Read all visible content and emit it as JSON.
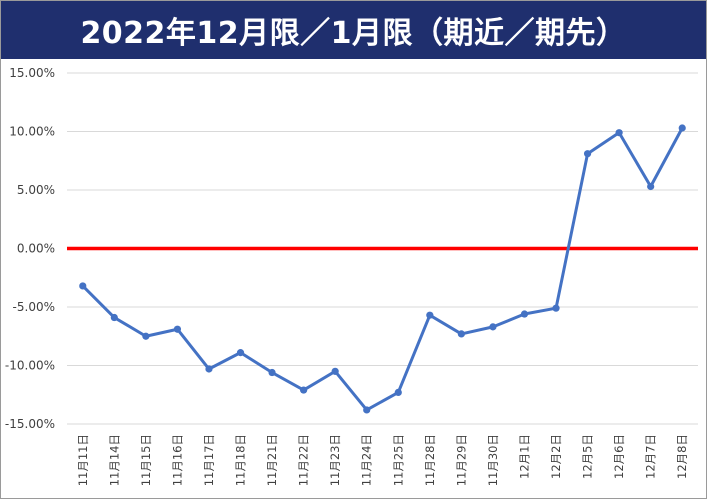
{
  "title": "2022年12月限／1月限（期近／期先）",
  "colors": {
    "title_bg": "#1f2f6e",
    "series": "#4472c4",
    "zero_line": "#ff0000",
    "grid": "#d9d9d9"
  },
  "chart_data": {
    "type": "line",
    "title": "2022年12月限／1月限（期近／期先）",
    "xlabel": "",
    "ylabel": "",
    "ylim": [
      -15,
      15
    ],
    "y_ticks": [
      15,
      10,
      5,
      0,
      -5,
      -10,
      -15
    ],
    "y_tick_labels": [
      "15.00%",
      "10.00%",
      "5.00%",
      "0.00%",
      "-5.00%",
      "-10.00%",
      "-15.00%"
    ],
    "grid": true,
    "legend": "none",
    "reference_line": 0,
    "categories": [
      "11月11日",
      "11月14日",
      "11月15日",
      "11月16日",
      "11月17日",
      "11月18日",
      "11月21日",
      "11月22日",
      "11月23日",
      "11月24日",
      "11月25日",
      "11月28日",
      "11月29日",
      "11月30日",
      "12月1日",
      "12月2日",
      "12月5日",
      "12月6日",
      "12月7日",
      "12月8日"
    ],
    "series": [
      {
        "values": [
          -3.2,
          -5.9,
          -7.5,
          -6.9,
          -10.3,
          -8.9,
          -10.6,
          -12.1,
          -10.5,
          -13.8,
          -12.3,
          -5.7,
          -7.3,
          -6.7,
          -5.6,
          -5.1,
          8.1,
          9.9,
          5.3,
          10.3
        ]
      }
    ]
  }
}
